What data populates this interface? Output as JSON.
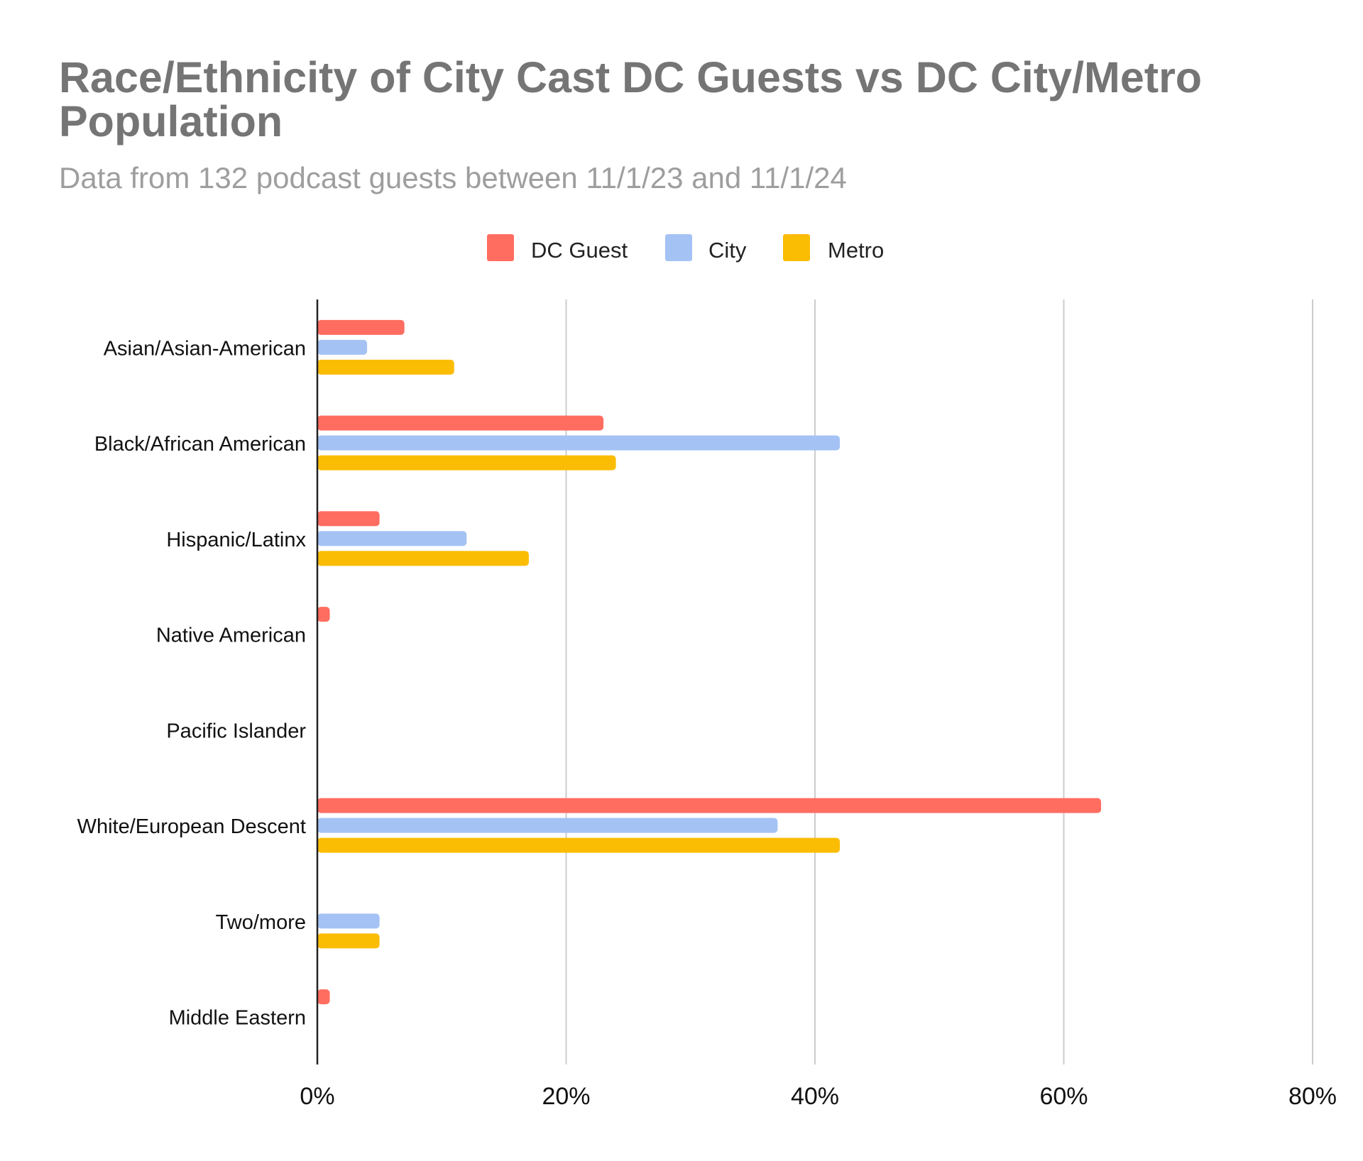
{
  "chart_data": {
    "type": "bar",
    "orientation": "horizontal",
    "title": "Race/Ethnicity of City Cast DC Guests vs DC City/Metro Population",
    "subtitle": "Data from 132 podcast guests between 11/1/23 and 11/1/24",
    "categories": [
      "Asian/Asian-American",
      "Black/African American",
      "Hispanic/Latinx",
      "Native American",
      "Pacific Islander",
      "White/European Descent",
      "Two/more",
      "Middle Eastern"
    ],
    "series": [
      {
        "name": "DC Guest",
        "color": "#ff6d61",
        "values": [
          7,
          23,
          5,
          1,
          0,
          63,
          0,
          1
        ]
      },
      {
        "name": "City",
        "color": "#a4c2f4",
        "values": [
          4,
          42,
          12,
          0,
          0,
          37,
          5,
          0
        ]
      },
      {
        "name": "Metro",
        "color": "#fbbc04",
        "values": [
          11,
          24,
          17,
          0,
          0,
          42,
          5,
          0
        ]
      }
    ],
    "xlim": [
      0,
      80
    ],
    "xticks": [
      "0%",
      "20%",
      "40%",
      "60%",
      "80%"
    ],
    "xlabel": "",
    "ylabel": "",
    "grid": true,
    "legend_position": "top"
  }
}
